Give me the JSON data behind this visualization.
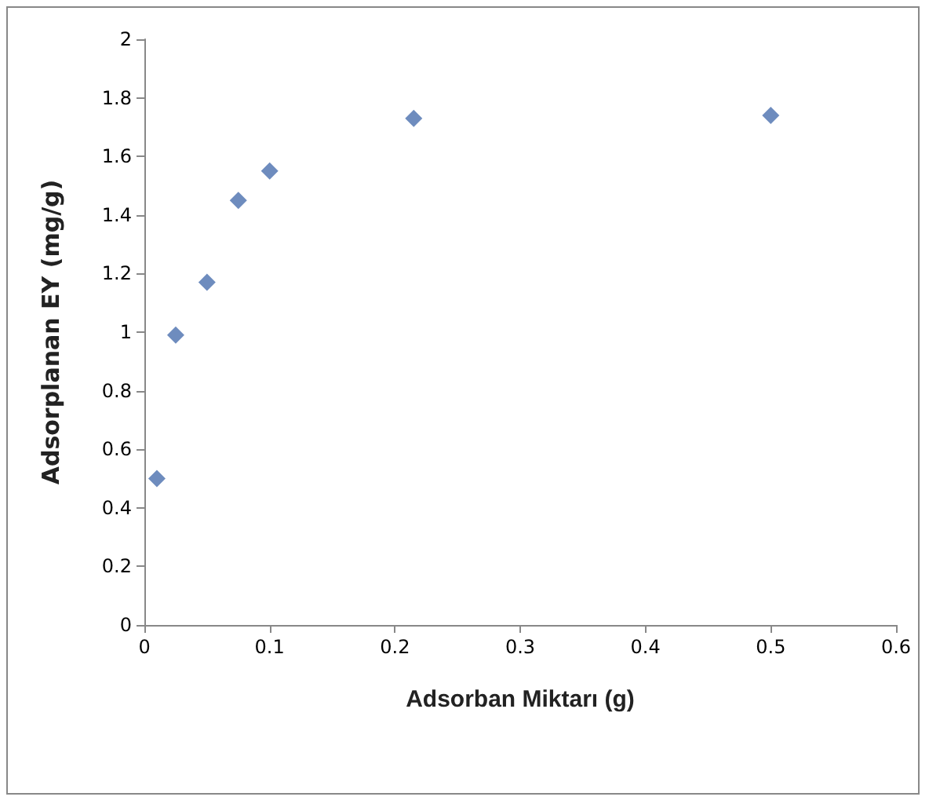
{
  "chart_data": {
    "type": "scatter",
    "xlabel": "Adsorban Miktarı (g)",
    "ylabel": "Adsorplanan EY (mg/g)",
    "x": [
      0.01,
      0.025,
      0.05,
      0.075,
      0.1,
      0.215,
      0.5
    ],
    "series": [
      {
        "color": "#4a6fae",
        "values": [
          0.5,
          0.99,
          1.17,
          1.45,
          1.55,
          1.73,
          1.74
        ]
      }
    ],
    "xlim": [
      0,
      0.6
    ],
    "xticks": [
      0,
      0.1,
      0.2,
      0.3,
      0.4,
      0.5,
      0.6
    ],
    "ylim": [
      0,
      2
    ],
    "yticks": [
      0,
      0.2,
      0.4,
      0.6,
      0.8,
      1,
      1.2,
      1.4,
      1.6,
      1.8,
      2
    ],
    "grid": false,
    "marker": "diamond"
  }
}
